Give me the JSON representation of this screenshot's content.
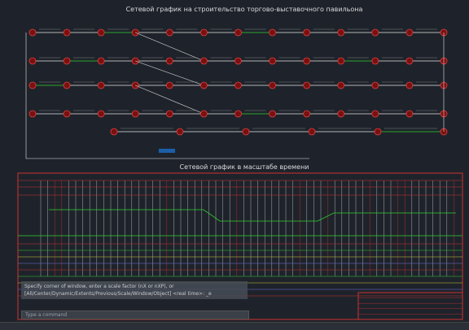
{
  "drawing": {
    "title_top": "Сетевой график на строительство торгово-выставочного павильона",
    "title_bottom": "Сетевой график в масштабе времени"
  },
  "command_line": {
    "history": [
      "Specify corner of window, enter a scale factor (nX or nXP), or",
      "[All/Center/Dynamic/Extents/Previous/Scale/Window/Object] <real time>: _e"
    ],
    "prompt": "Type a command"
  }
}
